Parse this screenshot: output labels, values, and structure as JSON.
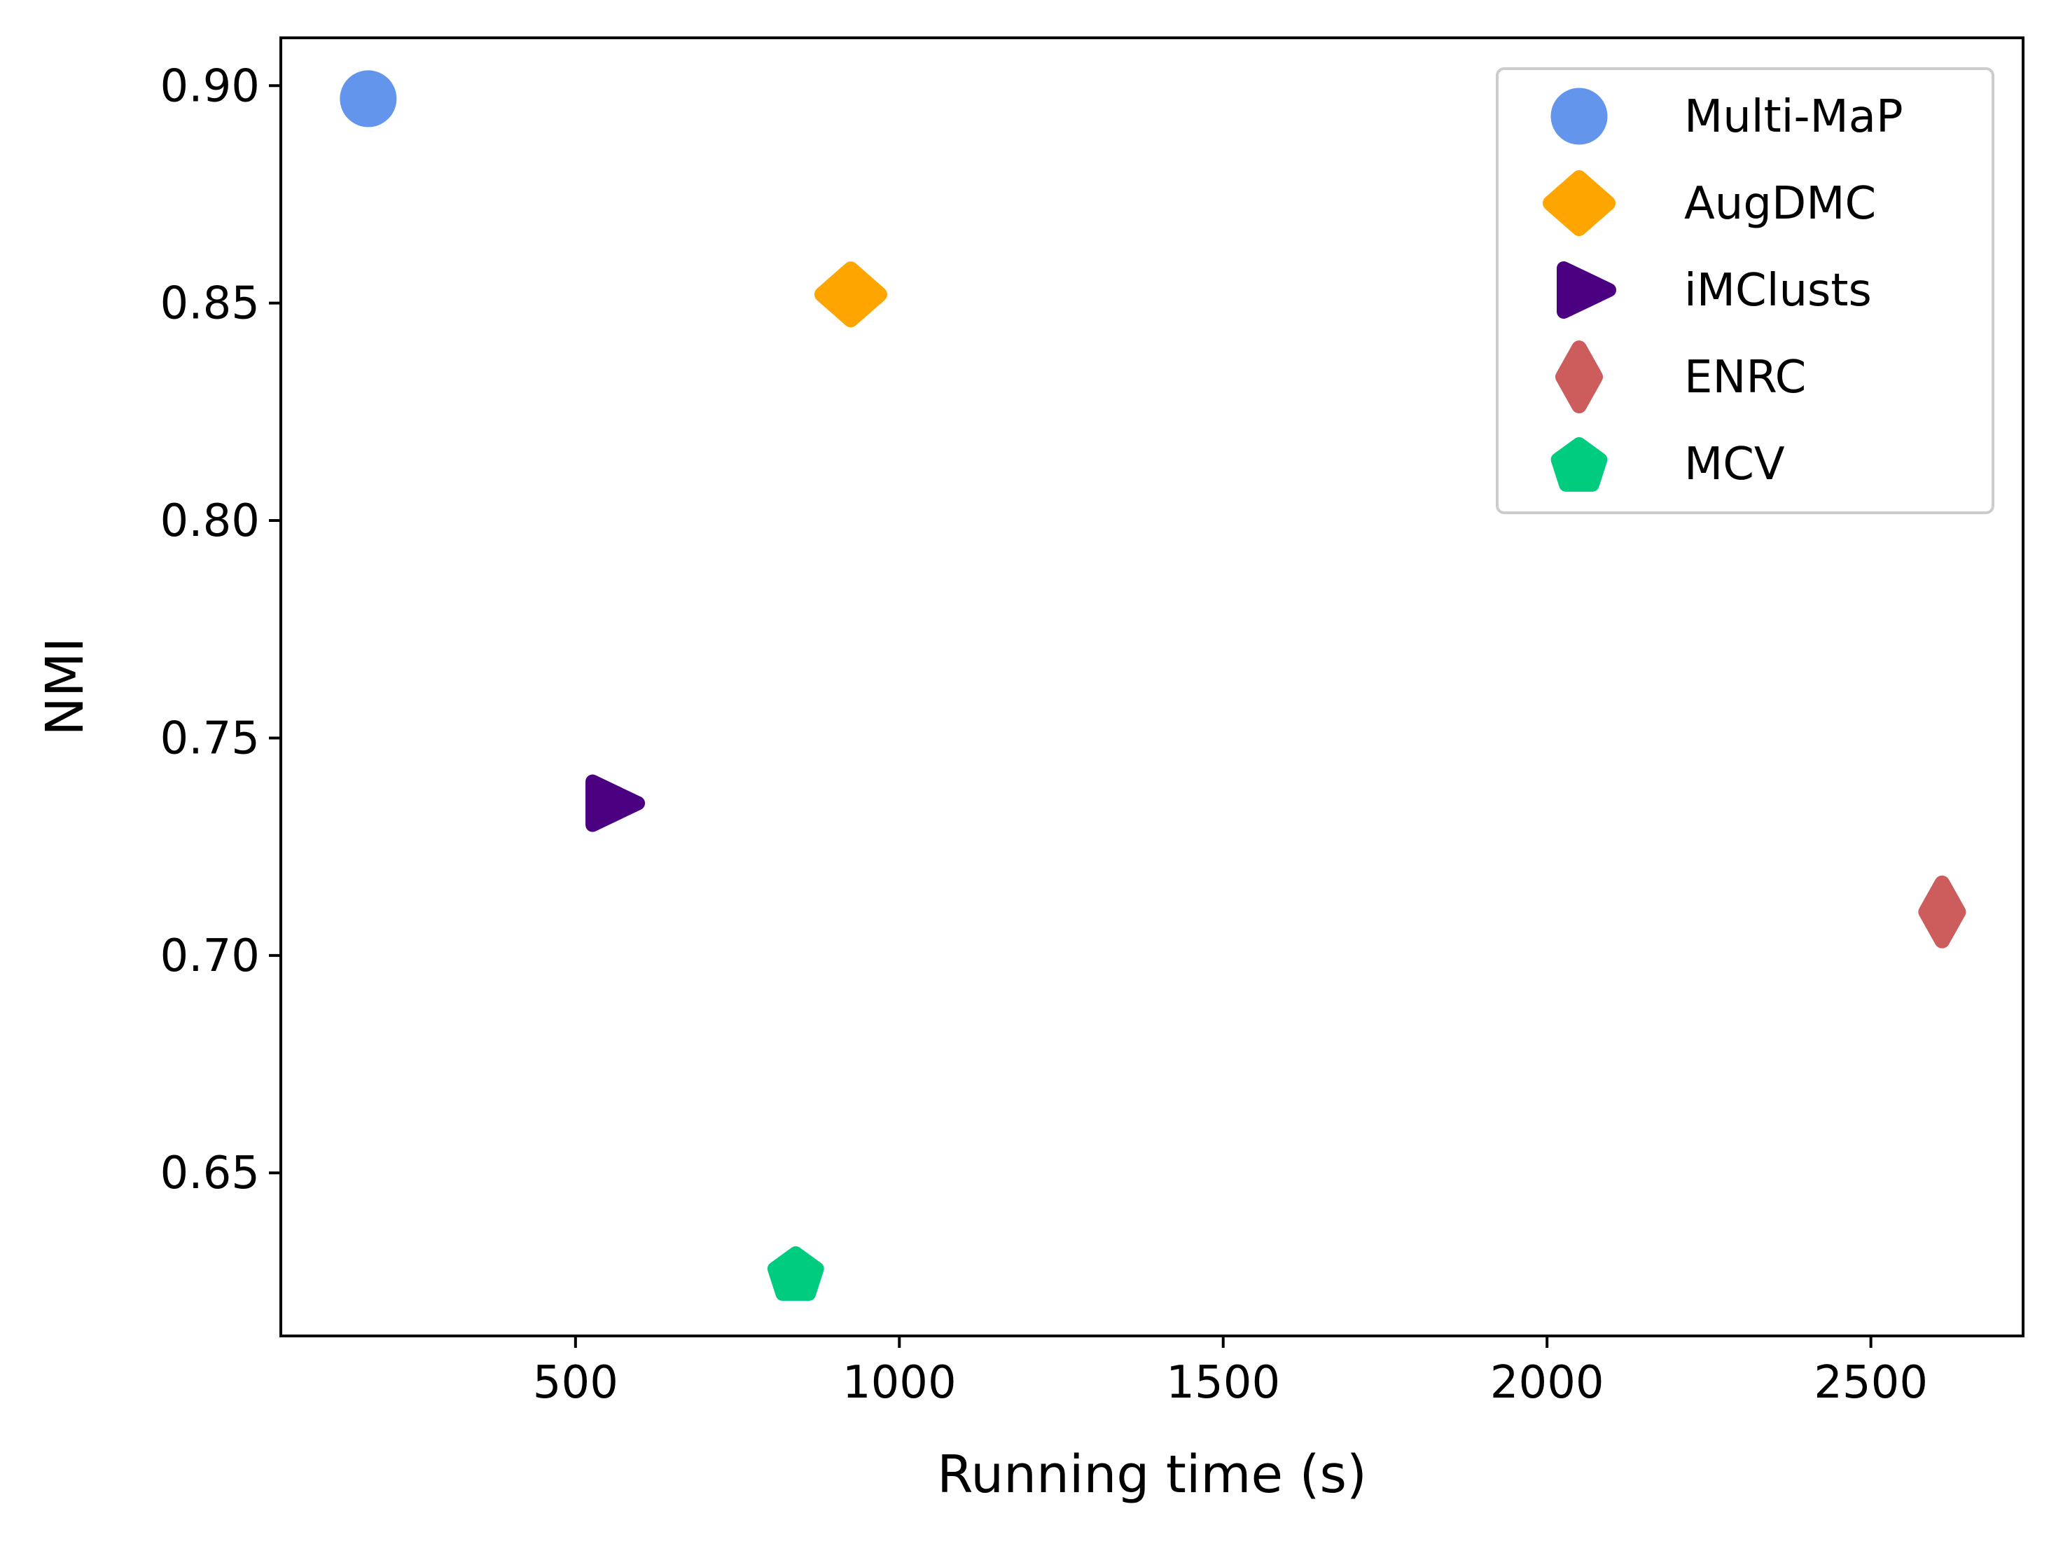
{
  "chart_data": {
    "type": "scatter",
    "xlabel": "Running time (s)",
    "ylabel": "NMI",
    "xlim": [
      45,
      2735
    ],
    "ylim": [
      0.6125,
      0.911
    ],
    "xticks": [
      {
        "value": 500,
        "label": "500"
      },
      {
        "value": 1000,
        "label": "1000"
      },
      {
        "value": 1500,
        "label": "1500"
      },
      {
        "value": 2000,
        "label": "2000"
      },
      {
        "value": 2500,
        "label": "2500"
      }
    ],
    "yticks": [
      {
        "value": 0.65,
        "label": "0.65"
      },
      {
        "value": 0.7,
        "label": "0.70"
      },
      {
        "value": 0.75,
        "label": "0.75"
      },
      {
        "value": 0.8,
        "label": "0.80"
      },
      {
        "value": 0.85,
        "label": "0.85"
      },
      {
        "value": 0.9,
        "label": "0.90"
      }
    ],
    "grid": false,
    "legend_position": "top-right",
    "series": [
      {
        "name": "Multi-MaP",
        "marker": "circle",
        "color": "#6495ED",
        "x": 180,
        "y": 0.897
      },
      {
        "name": "AugDMC",
        "marker": "diamond",
        "color": "#FFA500",
        "x": 925,
        "y": 0.852
      },
      {
        "name": "iMClusts",
        "marker": "triangle-right",
        "color": "#4B0082",
        "x": 550,
        "y": 0.735
      },
      {
        "name": "ENRC",
        "marker": "thin-diamond",
        "color": "#CD5C5C",
        "x": 2610,
        "y": 0.71
      },
      {
        "name": "MCV",
        "marker": "pentagon",
        "color": "#00CC80",
        "x": 840,
        "y": 0.627
      }
    ]
  }
}
